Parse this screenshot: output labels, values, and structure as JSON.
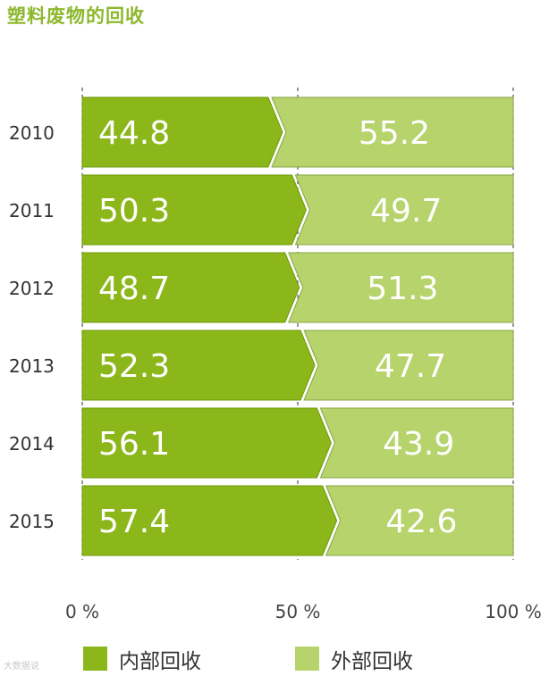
{
  "title": "塑料废物的回收",
  "watermark": "大数据说",
  "colors": {
    "inner": "#8cb71a",
    "outer": "#b7d36b",
    "inner_edge": "#6f9a08",
    "outer_edge": "#8aa64a"
  },
  "chart_data": {
    "type": "bar",
    "orientation": "horizontal",
    "stacked": true,
    "categories": [
      "2010",
      "2011",
      "2012",
      "2013",
      "2014",
      "2015"
    ],
    "series": [
      {
        "name": "内部回收",
        "values": [
          44.8,
          50.3,
          48.7,
          52.3,
          56.1,
          57.4
        ]
      },
      {
        "name": "外部回收",
        "values": [
          55.2,
          49.7,
          51.3,
          47.7,
          43.9,
          42.6
        ]
      }
    ],
    "xlim": [
      0,
      100
    ],
    "xticks": [
      "0 %",
      "50 %",
      "100 %"
    ],
    "grid": true,
    "legend_position": "bottom"
  },
  "legend": {
    "inner_label": "内部回收",
    "outer_label": "外部回收"
  }
}
